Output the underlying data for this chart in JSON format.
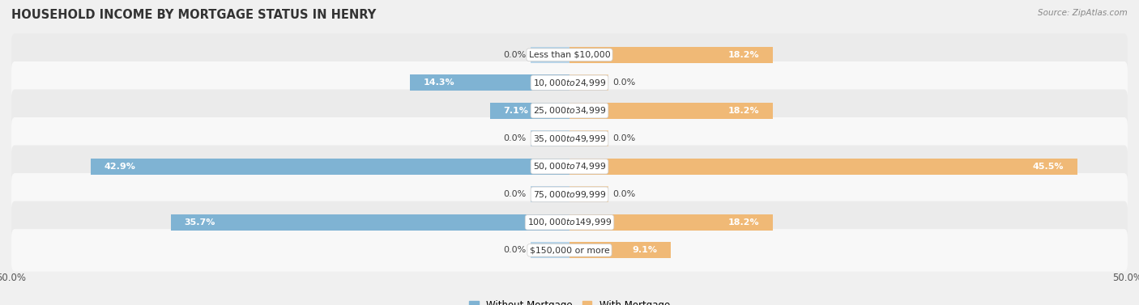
{
  "title": "HOUSEHOLD INCOME BY MORTGAGE STATUS IN HENRY",
  "source": "Source: ZipAtlas.com",
  "categories": [
    "Less than $10,000",
    "$10,000 to $24,999",
    "$25,000 to $34,999",
    "$35,000 to $49,999",
    "$50,000 to $74,999",
    "$75,000 to $99,999",
    "$100,000 to $149,999",
    "$150,000 or more"
  ],
  "without_mortgage": [
    0.0,
    14.3,
    7.1,
    0.0,
    42.9,
    0.0,
    35.7,
    0.0
  ],
  "with_mortgage": [
    18.2,
    0.0,
    18.2,
    0.0,
    45.5,
    0.0,
    18.2,
    9.1
  ],
  "color_without": "#7fb3d3",
  "color_without_light": "#b8d4e8",
  "color_with": "#f0b976",
  "color_with_light": "#f5d5ab",
  "stub_size": 3.5,
  "xlim": 50.0,
  "row_bg_light": "#ebebeb",
  "row_bg_white": "#f8f8f8",
  "fig_bg": "#f0f0f0",
  "title_fontsize": 10.5,
  "source_fontsize": 7.5,
  "label_fontsize": 8.0,
  "category_fontsize": 7.8,
  "axis_fontsize": 8.5,
  "legend_fontsize": 8.5
}
